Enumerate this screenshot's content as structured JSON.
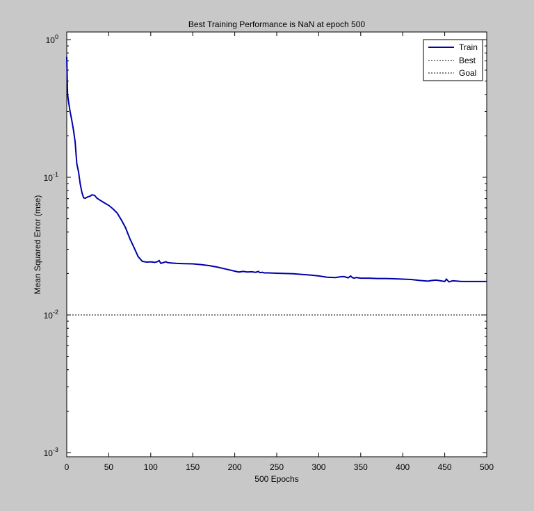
{
  "chart_data": {
    "type": "line",
    "title": "Best Training Performance is NaN at epoch 500",
    "xlabel": "500 Epochs",
    "ylabel": "Mean Squared Error  (mse)",
    "xlim": [
      0,
      500
    ],
    "ylim": [
      0.001,
      1
    ],
    "yscale": "log",
    "grid": false,
    "legend_position": "top-right",
    "x_ticks": [
      0,
      50,
      100,
      150,
      200,
      250,
      300,
      350,
      400,
      450,
      500
    ],
    "x_tick_labels": [
      "0",
      "50",
      "100",
      "150",
      "200",
      "250",
      "300",
      "350",
      "400",
      "450",
      "500"
    ],
    "y_ticks": [
      {
        "value": 1,
        "base": "10",
        "exp": "0"
      },
      {
        "value": 0.1,
        "base": "10",
        "exp": "-1"
      },
      {
        "value": 0.01,
        "base": "10",
        "exp": "-2"
      },
      {
        "value": 0.001,
        "base": "10",
        "exp": "-3"
      }
    ],
    "series": [
      {
        "name": "Train",
        "color": "#0000aa",
        "style": "solid",
        "x": [
          0,
          1,
          2,
          4,
          6,
          8,
          10,
          12,
          14,
          16,
          18,
          20,
          22,
          25,
          28,
          30,
          33,
          36,
          40,
          45,
          50,
          55,
          60,
          65,
          70,
          75,
          80,
          85,
          90,
          95,
          100,
          105,
          108,
          110,
          112,
          115,
          118,
          120,
          125,
          130,
          140,
          150,
          160,
          170,
          180,
          190,
          200,
          205,
          210,
          215,
          220,
          225,
          228,
          230,
          233,
          235,
          240,
          250,
          260,
          270,
          280,
          290,
          300,
          310,
          320,
          325,
          330,
          335,
          338,
          340,
          342,
          345,
          350,
          360,
          370,
          380,
          390,
          400,
          410,
          420,
          430,
          435,
          440,
          445,
          450,
          452,
          455,
          458,
          460,
          465,
          470,
          480,
          490,
          500
        ],
        "y": [
          0.75,
          0.4,
          0.36,
          0.3,
          0.26,
          0.22,
          0.18,
          0.125,
          0.11,
          0.09,
          0.078,
          0.071,
          0.0705,
          0.072,
          0.073,
          0.0745,
          0.074,
          0.0705,
          0.068,
          0.065,
          0.0625,
          0.059,
          0.055,
          0.049,
          0.043,
          0.036,
          0.031,
          0.0265,
          0.0245,
          0.0242,
          0.0243,
          0.0241,
          0.0244,
          0.0248,
          0.0237,
          0.024,
          0.0243,
          0.024,
          0.0238,
          0.0237,
          0.0236,
          0.0235,
          0.0232,
          0.0228,
          0.0222,
          0.0215,
          0.0208,
          0.0205,
          0.0207,
          0.0205,
          0.0206,
          0.0204,
          0.0207,
          0.0203,
          0.0204,
          0.0202,
          0.0202,
          0.0201,
          0.02,
          0.0199,
          0.0197,
          0.0195,
          0.0192,
          0.0188,
          0.0187,
          0.0189,
          0.019,
          0.0186,
          0.0192,
          0.0187,
          0.0185,
          0.0187,
          0.0185,
          0.0185,
          0.0184,
          0.0184,
          0.0183,
          0.0182,
          0.0181,
          0.0178,
          0.0176,
          0.0178,
          0.0179,
          0.0177,
          0.0175,
          0.0182,
          0.0174,
          0.0176,
          0.0177,
          0.0176,
          0.0175,
          0.0175,
          0.0175,
          0.0175
        ]
      },
      {
        "name": "Best",
        "color": "#000000",
        "style": "dotted",
        "x": [],
        "y": []
      },
      {
        "name": "Goal",
        "color": "#000000",
        "style": "dotted",
        "x": [
          0,
          500
        ],
        "y": [
          0.01,
          0.01
        ]
      }
    ]
  }
}
